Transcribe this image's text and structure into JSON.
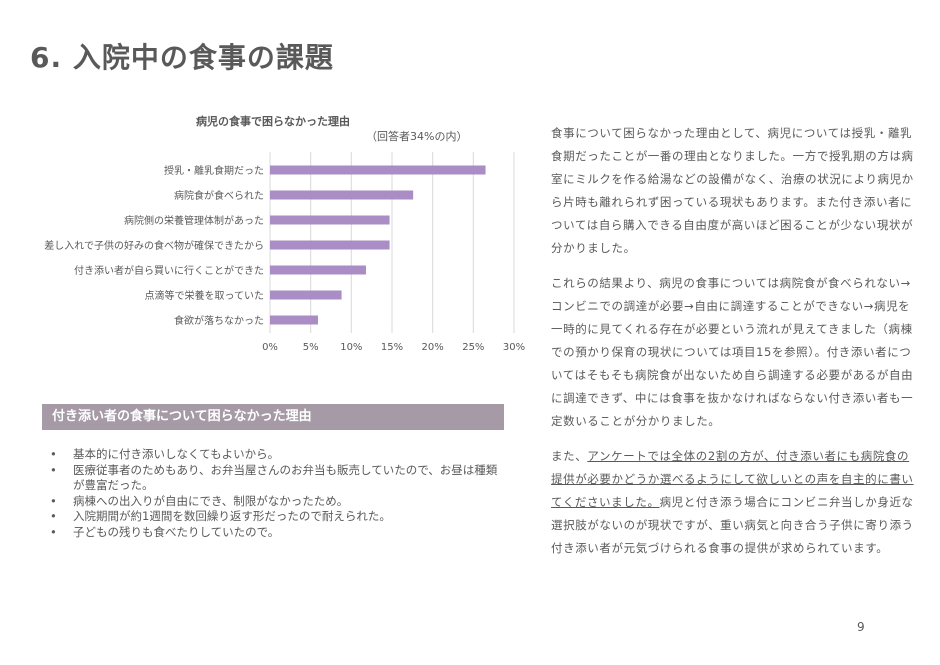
{
  "title": "6. 入院中の食事の課題",
  "chart_data": {
    "type": "bar",
    "orientation": "horizontal",
    "title": "病児の食事で困らなかった理由",
    "subtitle": "（回答者34%の内）",
    "categories": [
      "授乳・離乳食期だった",
      "病院食が食べられた",
      "病院側の栄養管理体制があった",
      "差し入れで子供の好みの食べ物が確保できたから",
      "付き添い者が自ら買いに行くことができた",
      "点滴等で栄養を取っていた",
      "食欲が落ちなかった"
    ],
    "values": [
      26.5,
      17.6,
      14.7,
      14.7,
      11.8,
      8.8,
      5.9
    ],
    "xlim": [
      0,
      30
    ],
    "ticks": [
      "0%",
      "5%",
      "10%",
      "15%",
      "20%",
      "25%",
      "30%"
    ],
    "grid": true,
    "colors": {
      "bar": "#a98dc4",
      "grid": "#d9d9d9",
      "text": "#595959"
    }
  },
  "section_band": "付き添い者の食事について困らなかった理由",
  "bullets": [
    "基本的に付き添いしなくてもよいから。",
    "医療従事者のためもあり、お弁当屋さんのお弁当も販売していたので、お昼は種類が豊富だった。",
    "病棟への出入りが自由にでき、制限がなかったため。",
    "入院期間が約1週間を数回繰り返す形だったので耐えられた。",
    "子どもの残りも食べたりしていたので。"
  ],
  "paragraphs": {
    "p1": "食事について困らなかった理由として、病児については授乳・離乳食期だったことが一番の理由となりました。一方で授乳期の方は病室にミルクを作る給湯などの設備がなく、治療の状況により病児から片時も離れられず困っている現状もあります。また付き添い者については自ら購入できる自由度が高いほど困ることが少ない現状が分かりました。",
    "p2": "これらの結果より、病児の食事については病院食が食べられない→コンビニでの調達が必要→自由に調達することができない→病児を一時的に見てくれる存在が必要という流れが見えてきました（病棟での預かり保育の現状については項目15を参照）。付き添い者についてはそもそも病院食が出ないため自ら調達する必要があるが自由に調達できず、中には食事を抜かなければならない付き添い者も一定数いることが分かりました。",
    "p3_a": "また、",
    "p3_underline": "アンケートでは全体の2割の方が、付き添い者にも病院食の提供が必要かどうか選べるようにして欲しいとの声を自主的に書いてくださいました。",
    "p3_b": "病児と付き添う場合にコンビニ弁当しか身近な選択肢がないのが現状ですが、重い病気と向き合う子供に寄り添う付き添い者が元気づけられる食事の提供が求められています。"
  },
  "page_number": "9"
}
